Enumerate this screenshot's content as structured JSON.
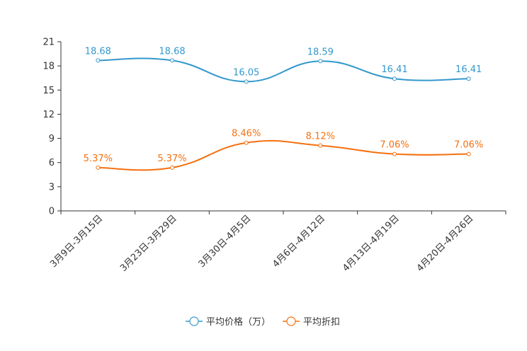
{
  "chart_data": {
    "type": "line",
    "title": "",
    "xlabel": "",
    "ylabel": "",
    "ylim": [
      0,
      21
    ],
    "yticks": [
      0,
      3,
      6,
      9,
      12,
      15,
      18,
      21
    ],
    "ytick_labels": [
      "0",
      "3",
      "6",
      "9",
      "12",
      "15",
      "18",
      "21"
    ],
    "grid": false,
    "legend_position": "bottom-center",
    "categories": [
      "3月9日-3月15日",
      "3月23日-3月29日",
      "3月30日-4月5日",
      "4月6日-4月12日",
      "4月13日-4月19日",
      "4月20日-4月26日"
    ],
    "series": [
      {
        "name": "平均价格（万）",
        "color": "#3398cc",
        "values": [
          18.68,
          18.68,
          16.05,
          18.59,
          16.41,
          16.41
        ],
        "labels": [
          "18.68",
          "18.68",
          "16.05",
          "18.59",
          "16.41",
          "16.41"
        ]
      },
      {
        "name": "平均折扣",
        "color": "#f5700f",
        "values": [
          5.37,
          5.37,
          8.46,
          8.12,
          7.06,
          7.06
        ],
        "labels": [
          "5.37%",
          "5.37%",
          "8.46%",
          "8.12%",
          "7.06%",
          "7.06%"
        ]
      }
    ]
  }
}
